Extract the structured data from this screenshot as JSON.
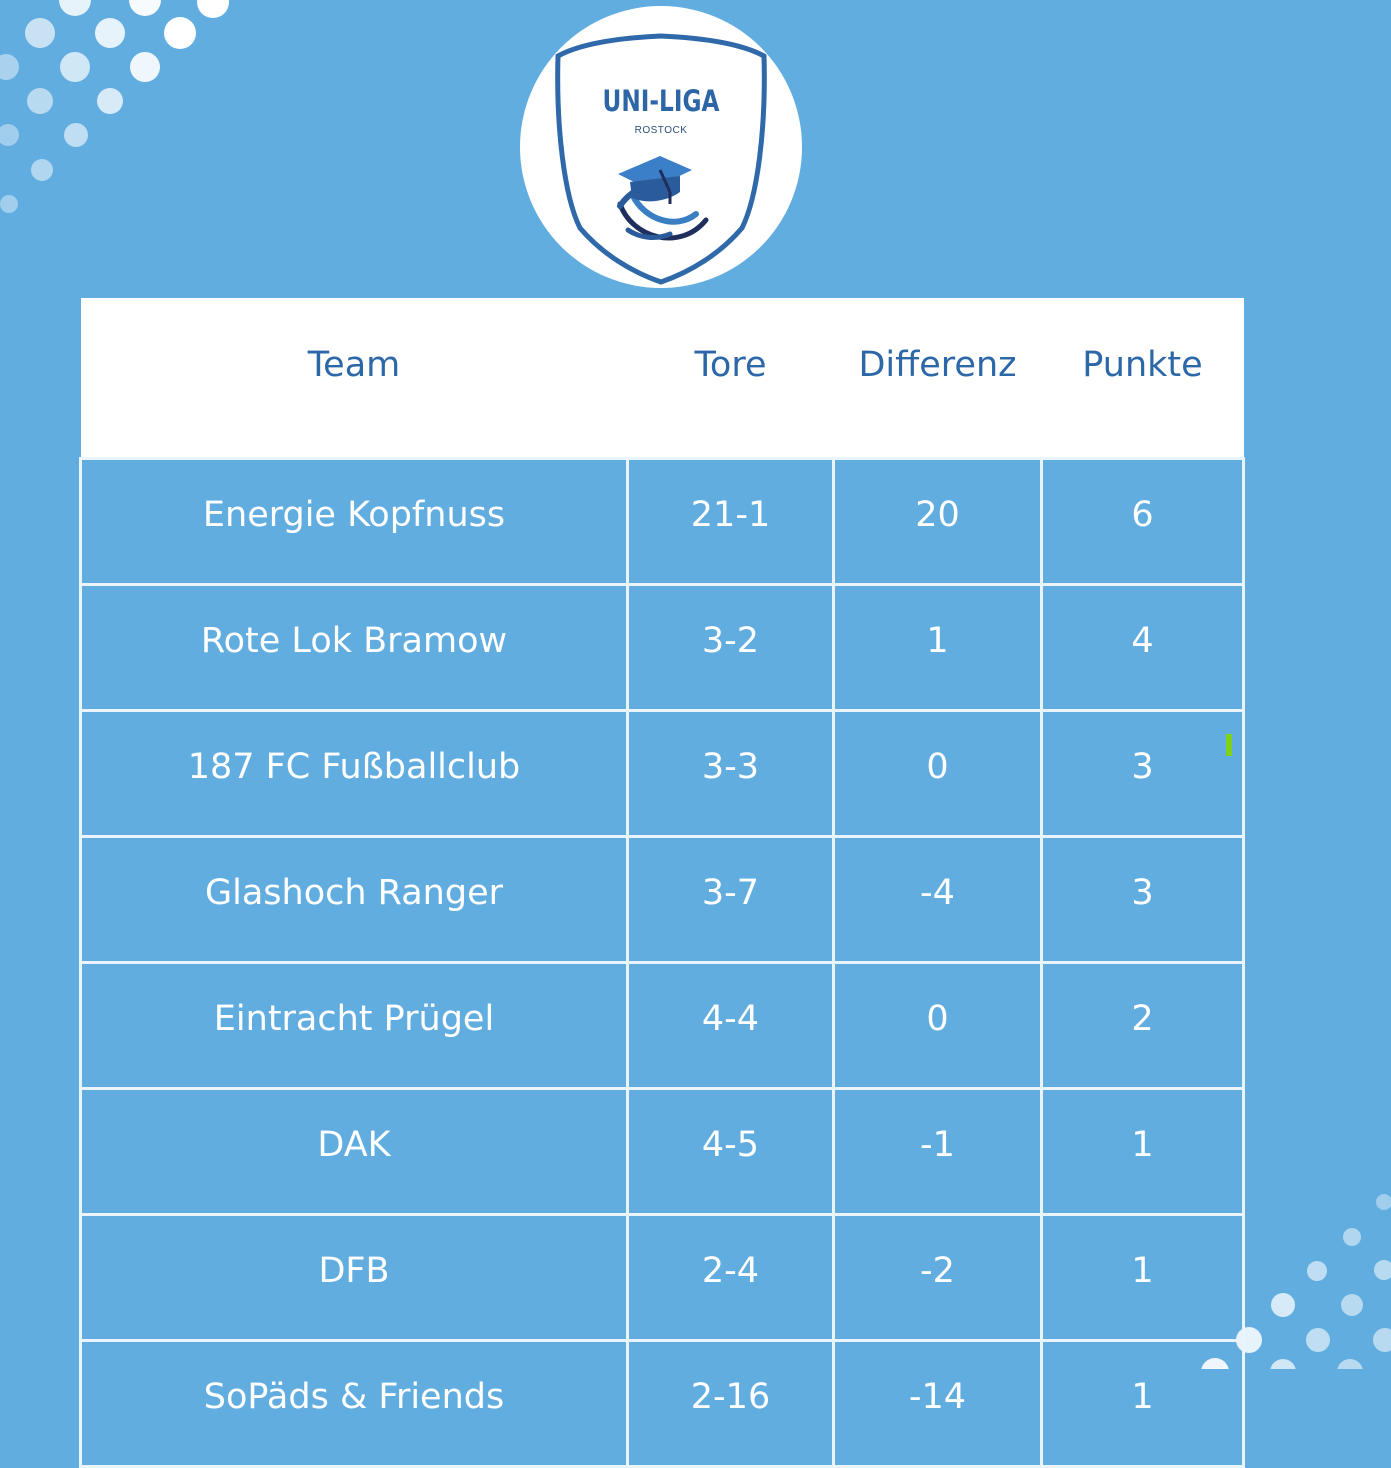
{
  "logo": {
    "title": "UNI-LIGA",
    "subtitle": "ROSTOCK"
  },
  "table": {
    "headers": [
      "Team",
      "Tore",
      "Differenz",
      "Punkte"
    ],
    "rows": [
      {
        "team": "Energie Kopfnuss",
        "tore": "21-1",
        "differenz": "20",
        "punkte": "6"
      },
      {
        "team": "Rote Lok Bramow",
        "tore": "3-2",
        "differenz": "1",
        "punkte": "4"
      },
      {
        "team": "187 FC Fußballclub",
        "tore": "3-3",
        "differenz": "0",
        "punkte": "3"
      },
      {
        "team": "Glashoch Ranger",
        "tore": "3-7",
        "differenz": "-4",
        "punkte": "3"
      },
      {
        "team": "Eintracht Prügel",
        "tore": "4-4",
        "differenz": "0",
        "punkte": "2"
      },
      {
        "team": "DAK",
        "tore": "4-5",
        "differenz": "-1",
        "punkte": "1"
      },
      {
        "team": "DFB",
        "tore": "2-4",
        "differenz": "-2",
        "punkte": "1"
      },
      {
        "team": "SoPäds & Friends",
        "tore": "2-16",
        "differenz": "-14",
        "punkte": "1"
      }
    ]
  },
  "colors": {
    "background": "#62ade0",
    "header_text": "#2c67a8",
    "cell_text": "#ffffff",
    "grid_lines": "#eaf4fc"
  }
}
